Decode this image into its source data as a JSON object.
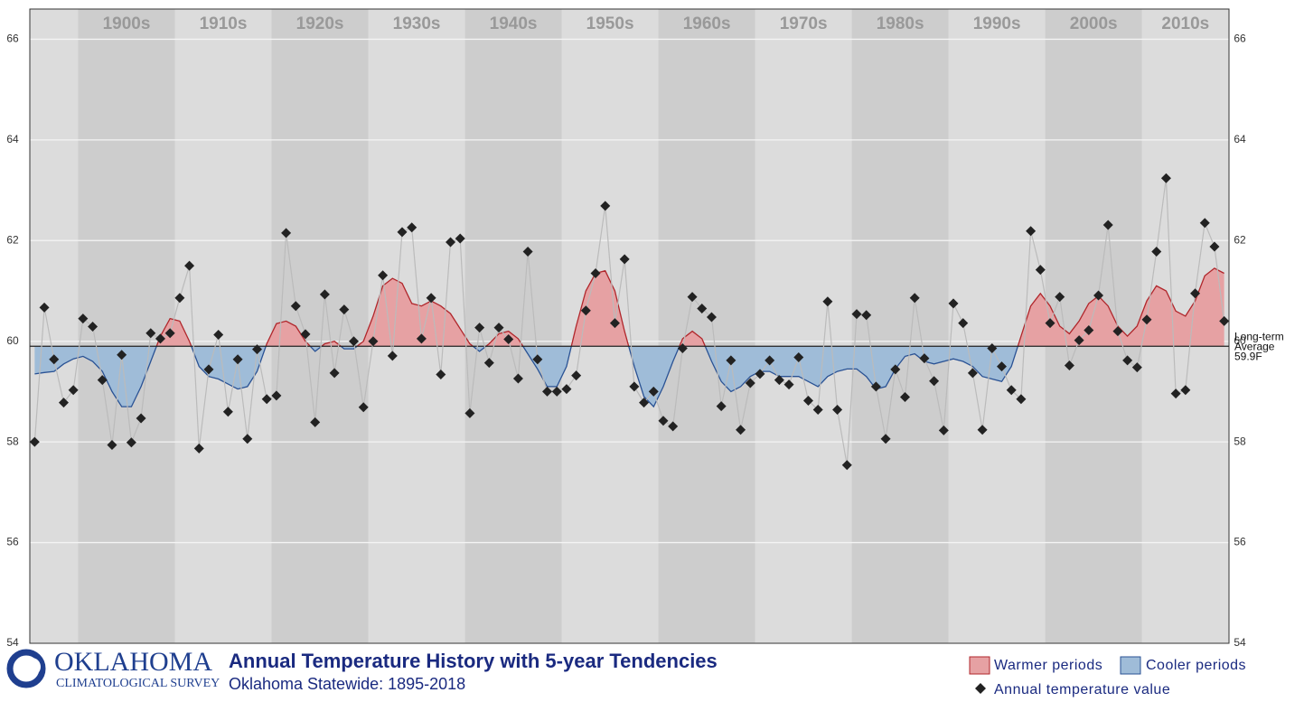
{
  "chart_data": {
    "type": "line",
    "title": "Annual Temperature History with 5-year Tendencies",
    "subtitle": "Oklahoma Statewide: 1895-2018",
    "logo": {
      "name": "OKLAHOMA",
      "subname": "CLIMATOLOGICAL SURVEY"
    },
    "xlim": [
      1894.5,
      2018.5
    ],
    "xticks": [
      {
        "value": 1900,
        "label": "1900s"
      },
      {
        "value": 1910,
        "label": "1910s"
      },
      {
        "value": 1920,
        "label": "1920s"
      },
      {
        "value": 1930,
        "label": "1930s"
      },
      {
        "value": 1940,
        "label": "1940s"
      },
      {
        "value": 1950,
        "label": "1950s"
      },
      {
        "value": 1960,
        "label": "1960s"
      },
      {
        "value": 1970,
        "label": "1970s"
      },
      {
        "value": 1980,
        "label": "1980s"
      },
      {
        "value": 1990,
        "label": "1990s"
      },
      {
        "value": 2000,
        "label": "2000s"
      },
      {
        "value": 2010,
        "label": "2010s"
      }
    ],
    "ylim": [
      54,
      66.6
    ],
    "yticks": [
      54,
      56,
      58,
      60,
      62,
      64,
      66
    ],
    "grid": true,
    "average": {
      "value": 59.9,
      "label": [
        "Long-term",
        "Average"
      ],
      "value_label": "59.9F"
    },
    "x": [
      1895,
      1896,
      1897,
      1898,
      1899,
      1900,
      1901,
      1902,
      1903,
      1904,
      1905,
      1906,
      1907,
      1908,
      1909,
      1910,
      1911,
      1912,
      1913,
      1914,
      1915,
      1916,
      1917,
      1918,
      1919,
      1920,
      1921,
      1922,
      1923,
      1924,
      1925,
      1926,
      1927,
      1928,
      1929,
      1930,
      1931,
      1932,
      1933,
      1934,
      1935,
      1936,
      1937,
      1938,
      1939,
      1940,
      1941,
      1942,
      1943,
      1944,
      1945,
      1946,
      1947,
      1948,
      1949,
      1950,
      1951,
      1952,
      1953,
      1954,
      1955,
      1956,
      1957,
      1958,
      1959,
      1960,
      1961,
      1962,
      1963,
      1964,
      1965,
      1966,
      1967,
      1968,
      1969,
      1970,
      1971,
      1972,
      1973,
      1974,
      1975,
      1976,
      1977,
      1978,
      1979,
      1980,
      1981,
      1982,
      1983,
      1984,
      1985,
      1986,
      1987,
      1988,
      1989,
      1990,
      1991,
      1992,
      1993,
      1994,
      1995,
      1996,
      1997,
      1998,
      1999,
      2000,
      2001,
      2002,
      2003,
      2004,
      2005,
      2006,
      2007,
      2008,
      2009,
      2010,
      2011,
      2012,
      2013,
      2014,
      2015,
      2016,
      2017,
      2018
    ],
    "series": [
      {
        "name": "Annual temperature value",
        "color": "#222222",
        "line_color": "#bbbbbb",
        "values": [
          58.0,
          60.67,
          59.64,
          58.78,
          59.03,
          60.45,
          60.29,
          59.23,
          57.94,
          59.73,
          57.99,
          58.47,
          60.16,
          60.05,
          60.16,
          60.86,
          61.5,
          57.87,
          59.44,
          60.13,
          58.6,
          59.64,
          58.06,
          59.84,
          58.85,
          58.92,
          62.15,
          60.7,
          60.14,
          58.39,
          60.93,
          59.37,
          60.63,
          60.0,
          58.69,
          60.0,
          61.31,
          59.71,
          62.17,
          62.26,
          60.05,
          60.86,
          59.34,
          61.97,
          62.04,
          58.57,
          60.27,
          59.57,
          60.27,
          60.04,
          59.26,
          61.78,
          59.64,
          59.0,
          59.0,
          59.05,
          59.32,
          60.61,
          61.35,
          62.69,
          60.36,
          61.63,
          59.1,
          58.78,
          59.0,
          58.42,
          58.31,
          59.86,
          60.88,
          60.65,
          60.48,
          58.71,
          59.62,
          58.24,
          59.17,
          59.35,
          59.62,
          59.23,
          59.14,
          59.68,
          58.82,
          58.64,
          60.79,
          58.64,
          57.54,
          60.54,
          60.52,
          59.1,
          58.06,
          59.44,
          58.89,
          60.86,
          59.66,
          59.21,
          58.23,
          60.75,
          60.36,
          59.37,
          58.24,
          59.86,
          59.5,
          59.03,
          58.85,
          62.19,
          61.42,
          60.36,
          60.88,
          59.52,
          60.02,
          60.22,
          60.91,
          62.31,
          60.2,
          59.62,
          59.48,
          60.43,
          61.78,
          63.24,
          58.96,
          59.03,
          60.95,
          62.35,
          61.88,
          60.4
        ]
      }
    ],
    "tendency": {
      "values": [
        59.35,
        59.38,
        59.4,
        59.55,
        59.65,
        59.7,
        59.6,
        59.4,
        59.0,
        58.7,
        58.7,
        59.1,
        59.6,
        60.1,
        60.45,
        60.4,
        60.0,
        59.5,
        59.3,
        59.25,
        59.15,
        59.05,
        59.1,
        59.4,
        59.95,
        60.35,
        60.4,
        60.3,
        60.0,
        59.8,
        59.95,
        60.0,
        59.85,
        59.85,
        60.0,
        60.5,
        61.1,
        61.25,
        61.15,
        60.75,
        60.7,
        60.8,
        60.7,
        60.55,
        60.25,
        59.95,
        59.8,
        59.95,
        60.15,
        60.2,
        60.05,
        59.75,
        59.45,
        59.1,
        59.1,
        59.5,
        60.3,
        61.0,
        61.35,
        61.4,
        61.0,
        60.2,
        59.5,
        58.9,
        58.7,
        59.1,
        59.6,
        60.05,
        60.2,
        60.05,
        59.6,
        59.2,
        59.0,
        59.1,
        59.3,
        59.4,
        59.4,
        59.3,
        59.3,
        59.3,
        59.2,
        59.1,
        59.3,
        59.4,
        59.45,
        59.45,
        59.3,
        59.05,
        59.1,
        59.45,
        59.7,
        59.75,
        59.6,
        59.55,
        59.6,
        59.65,
        59.6,
        59.5,
        59.3,
        59.25,
        59.2,
        59.5,
        60.1,
        60.7,
        60.95,
        60.7,
        60.3,
        60.15,
        60.4,
        60.75,
        60.9,
        60.7,
        60.3,
        60.1,
        60.3,
        60.8,
        61.1,
        61.0,
        60.6,
        60.5,
        60.8,
        61.3,
        61.45,
        61.35
      ],
      "above": {
        "name": "Warmer periods",
        "color": "#e6a1a3",
        "line_color": "#b0262b"
      },
      "below": {
        "name": "Cooler periods",
        "color": "#9fbcd8",
        "line_color": "#2a5294"
      }
    },
    "band_colors": [
      "#dcdcdc",
      "#cdcdcd"
    ]
  }
}
